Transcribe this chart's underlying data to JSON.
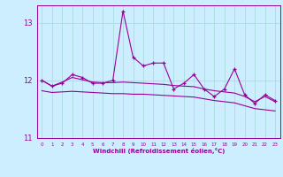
{
  "xlabel": "Windchill (Refroidissement éolien,°C)",
  "x": [
    0,
    1,
    2,
    3,
    4,
    5,
    6,
    7,
    8,
    9,
    10,
    11,
    12,
    13,
    14,
    15,
    16,
    17,
    18,
    19,
    20,
    21,
    22,
    23
  ],
  "y_measured": [
    12.0,
    11.9,
    11.95,
    12.1,
    12.05,
    11.95,
    11.95,
    12.0,
    13.2,
    12.4,
    12.25,
    12.3,
    12.3,
    11.85,
    11.95,
    12.1,
    11.85,
    11.72,
    11.85,
    12.2,
    11.75,
    11.6,
    11.75,
    11.65
  ],
  "y_smooth_upper": [
    12.0,
    11.9,
    11.97,
    12.05,
    12.01,
    11.97,
    11.96,
    11.96,
    11.97,
    11.96,
    11.95,
    11.94,
    11.93,
    11.91,
    11.9,
    11.89,
    11.85,
    11.82,
    11.8,
    11.78,
    11.72,
    11.63,
    11.72,
    11.63
  ],
  "y_smooth_lower": [
    11.82,
    11.79,
    11.8,
    11.81,
    11.8,
    11.79,
    11.78,
    11.77,
    11.77,
    11.76,
    11.76,
    11.75,
    11.74,
    11.73,
    11.72,
    11.71,
    11.68,
    11.65,
    11.63,
    11.61,
    11.56,
    11.51,
    11.49,
    11.47
  ],
  "color_main": "#990099",
  "bg_color": "#cceeff",
  "grid_color": "#aadddd",
  "text_color": "#990099",
  "ylim": [
    11.0,
    13.3
  ],
  "yticks": [
    11,
    12,
    13
  ],
  "xlim": [
    -0.5,
    23.5
  ]
}
